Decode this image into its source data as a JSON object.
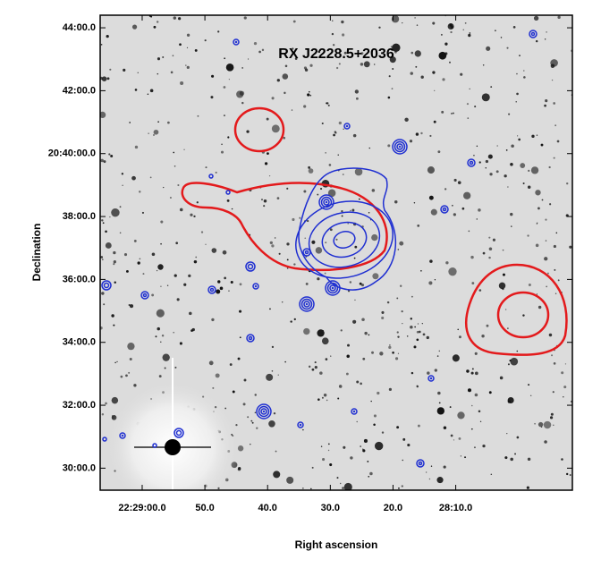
{
  "chart_data": {
    "type": "image",
    "title": "RX J2228.5+2036",
    "xlabel": "Right ascension",
    "ylabel": "Declination",
    "xlim": [
      66.7,
      -8.6
    ],
    "ylim": [
      29.3,
      44.4
    ],
    "xticks": [
      {
        "value": 60,
        "label": "22:29:00.0"
      },
      {
        "value": 50,
        "label": "50.0"
      },
      {
        "value": 40,
        "label": "40.0"
      },
      {
        "value": 30,
        "label": "30.0"
      },
      {
        "value": 20,
        "label": "20.0"
      },
      {
        "value": 10,
        "label": "28:10.0"
      }
    ],
    "yticks": [
      {
        "value": 44,
        "label": "44:00.0"
      },
      {
        "value": 42,
        "label": "42:00.0"
      },
      {
        "value": 40,
        "label": "20:40:00.0"
      },
      {
        "value": 38,
        "label": "38:00.0"
      },
      {
        "value": 36,
        "label": "36:00.0"
      },
      {
        "value": 34,
        "label": "34:00.0"
      },
      {
        "value": 32,
        "label": "32:00.0"
      },
      {
        "value": 30,
        "label": "30:00.0"
      }
    ]
  }
}
